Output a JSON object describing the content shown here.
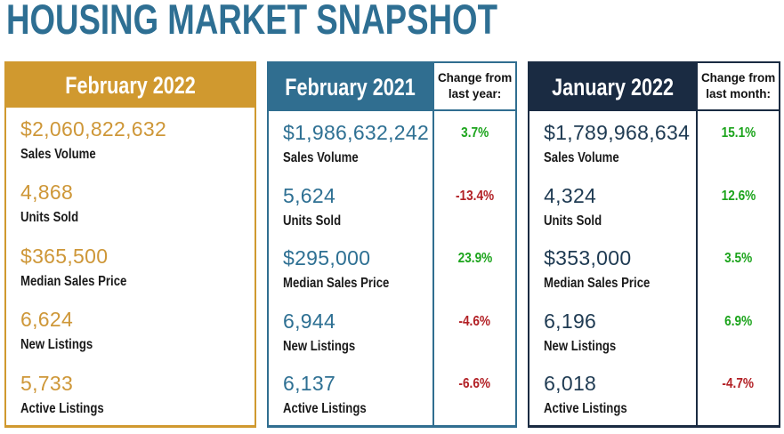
{
  "title": "HOUSING MARKET SNAPSHOT",
  "colors": {
    "title_teal": "#2E6F93",
    "gold": "#D0992F",
    "teal": "#306E90",
    "navy": "#1A2B42",
    "gold_value": "#CE9738",
    "teal_value": "#2E7093",
    "navy_value": "#1E3A52",
    "positive_green": "#1CA41C",
    "negative_red": "#B22025",
    "label_black": "#1A1A1A"
  },
  "panels": [
    {
      "title": "February 2022",
      "theme": "gold",
      "metrics": [
        {
          "value": "$2,060,822,632",
          "label": "Sales Volume"
        },
        {
          "value": "4,868",
          "label": "Units Sold"
        },
        {
          "value": "$365,500",
          "label": "Median Sales Price"
        },
        {
          "value": "6,624",
          "label": "New Listings"
        },
        {
          "value": "5,733",
          "label": "Active Listings"
        }
      ]
    },
    {
      "title": "February 2021",
      "theme": "teal",
      "change_header": "Change from last year:",
      "metrics": [
        {
          "value": "$1,986,632,242",
          "label": "Sales Volume",
          "change": "3.7%"
        },
        {
          "value": "5,624",
          "label": "Units Sold",
          "change": "-13.4%"
        },
        {
          "value": "$295,000",
          "label": "Median Sales Price",
          "change": "23.9%"
        },
        {
          "value": "6,944",
          "label": "New Listings",
          "change": "-4.6%"
        },
        {
          "value": "6,137",
          "label": "Active Listings",
          "change": "-6.6%"
        }
      ]
    },
    {
      "title": "January 2022",
      "theme": "navy",
      "change_header": "Change from last month:",
      "metrics": [
        {
          "value": "$1,789,968,634",
          "label": "Sales Volume",
          "change": "15.1%"
        },
        {
          "value": "4,324",
          "label": "Units Sold",
          "change": "12.6%"
        },
        {
          "value": "$353,000",
          "label": "Median Sales Price",
          "change": "3.5%"
        },
        {
          "value": "6,196",
          "label": "New Listings",
          "change": "6.9%"
        },
        {
          "value": "6,018",
          "label": "Active Listings",
          "change": "-4.7%"
        }
      ]
    }
  ],
  "chart_data": {
    "type": "table",
    "title": "HOUSING MARKET SNAPSHOT",
    "rows": [
      "Sales Volume",
      "Units Sold",
      "Median Sales Price",
      "New Listings",
      "Active Listings"
    ],
    "columns": [
      "February 2022",
      "February 2021",
      "Change from last year:",
      "January 2022",
      "Change from last month:"
    ],
    "values": {
      "february_2022": [
        "$2,060,822,632",
        "4,868",
        "$365,500",
        "6,624",
        "5,733"
      ],
      "february_2021": [
        "$1,986,632,242",
        "5,624",
        "$295,000",
        "6,944",
        "6,137"
      ],
      "change_from_last_year": [
        "3.7%",
        "-13.4%",
        "23.9%",
        "-4.6%",
        "-6.6%"
      ],
      "january_2022": [
        "$1,789,968,634",
        "4,324",
        "$353,000",
        "6,196",
        "6,018"
      ],
      "change_from_last_month": [
        "15.1%",
        "12.6%",
        "3.5%",
        "6.9%",
        "-4.7%"
      ]
    }
  }
}
